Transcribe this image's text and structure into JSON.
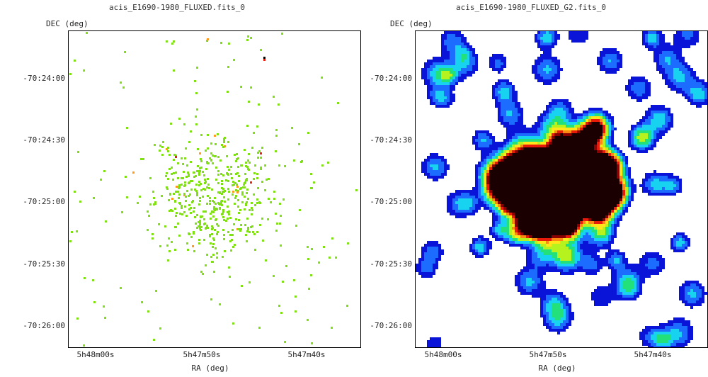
{
  "panels": [
    {
      "title": "acis_E1690-1980_FLUXED.fits_0",
      "dec_label": "DEC (deg)",
      "ra_label": "RA (deg)",
      "y_ticks": [
        "-70:24:00",
        "-70:24:30",
        "-70:25:00",
        "-70:25:30",
        "-70:26:00"
      ],
      "x_ticks": [
        "5h48m00s",
        "5h47m50s",
        "5h47m40s"
      ],
      "image_style": "sparse-pixels",
      "colors": {
        "main": "#7fe014",
        "warm": "#ff9a1a",
        "hot": "#e8200e",
        "peak": "#000000"
      }
    },
    {
      "title": "acis_E1690-1980_FLUXED_G2.fits_0",
      "dec_label": "DEC (deg)",
      "ra_label": "RA (deg)",
      "y_ticks": [
        "-70:24:00",
        "-70:24:30",
        "-70:25:00",
        "-70:25:30",
        "-70:26:00"
      ],
      "x_ticks": [
        "5h48m00s",
        "5h47m50s",
        "5h47m40s"
      ],
      "image_style": "smoothed-heatmap",
      "colormap": [
        "#0a14d8",
        "#1c6cff",
        "#17d3f0",
        "#22e07a",
        "#b6f21e",
        "#ffe51a",
        "#ff8a12",
        "#e81a0a",
        "#8b0000",
        "#1a0000"
      ]
    }
  ]
}
